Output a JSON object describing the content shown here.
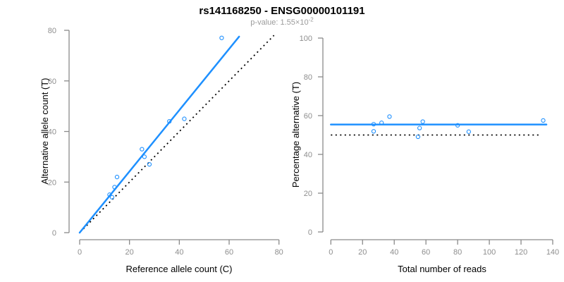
{
  "header": {
    "title": "rs141168250 - ENSG00000101191",
    "subtitle_prefix": "p-value: 1.55×10",
    "subtitle_exponent": "-2"
  },
  "colors": {
    "accent_blue": "#1E90FF",
    "axis_gray": "#8a8a8a",
    "tick_label_gray": "#8e8e8e",
    "axis_label_black": "#000000",
    "subtitle_gray": "#9b9b9b",
    "dotted_line_black": "#000000"
  },
  "chart_data": [
    {
      "id": "allele-counts-scatter",
      "type": "scatter",
      "xlabel": "Reference allele count (C)",
      "ylabel": "Alternative allele count (T)",
      "xlim": [
        0,
        80
      ],
      "ylim": [
        0,
        80
      ],
      "xticks": [
        0,
        20,
        40,
        60,
        80
      ],
      "yticks": [
        0,
        20,
        40,
        60,
        80
      ],
      "grid": false,
      "legend": null,
      "points": [
        [
          12,
          15
        ],
        [
          13,
          14
        ],
        [
          14,
          18
        ],
        [
          15,
          22
        ],
        [
          25,
          33
        ],
        [
          26,
          30
        ],
        [
          28,
          27
        ],
        [
          36,
          44
        ],
        [
          42,
          45
        ],
        [
          57,
          77
        ]
      ],
      "fit_line": {
        "style": "solid",
        "x1": 0,
        "y1": 0,
        "x2": 64,
        "y2": 77.5,
        "description": "regression fit, slope ~1.22"
      },
      "reference_line": {
        "style": "dotted",
        "x1": 1.5,
        "y1": 1.5,
        "x2": 78,
        "y2": 78,
        "description": "identity line y = x"
      }
    },
    {
      "id": "percentage-alternative-scatter",
      "type": "scatter",
      "xlabel": "Total number of reads",
      "ylabel": "Percentage alternative (T)",
      "xlim": [
        0,
        140
      ],
      "ylim": [
        0,
        100
      ],
      "xticks": [
        0,
        20,
        40,
        60,
        80,
        100,
        120,
        140
      ],
      "yticks": [
        0,
        20,
        40,
        60,
        80,
        100
      ],
      "grid": false,
      "legend": null,
      "points": [
        [
          27,
          55.6
        ],
        [
          27,
          51.9
        ],
        [
          32,
          56.3
        ],
        [
          37,
          59.5
        ],
        [
          58,
          56.9
        ],
        [
          56,
          53.6
        ],
        [
          55,
          49.1
        ],
        [
          80,
          55.0
        ],
        [
          87,
          51.7
        ],
        [
          134,
          57.5
        ]
      ],
      "fit_line": {
        "style": "solid",
        "x1": 0,
        "y1": 55.4,
        "x2": 136,
        "y2": 55.4,
        "description": "mean alternative percentage ~55.4%"
      },
      "reference_line": {
        "style": "dotted",
        "x1": 0,
        "y1": 50,
        "x2": 133,
        "y2": 50,
        "description": "null expectation 50%"
      }
    }
  ]
}
